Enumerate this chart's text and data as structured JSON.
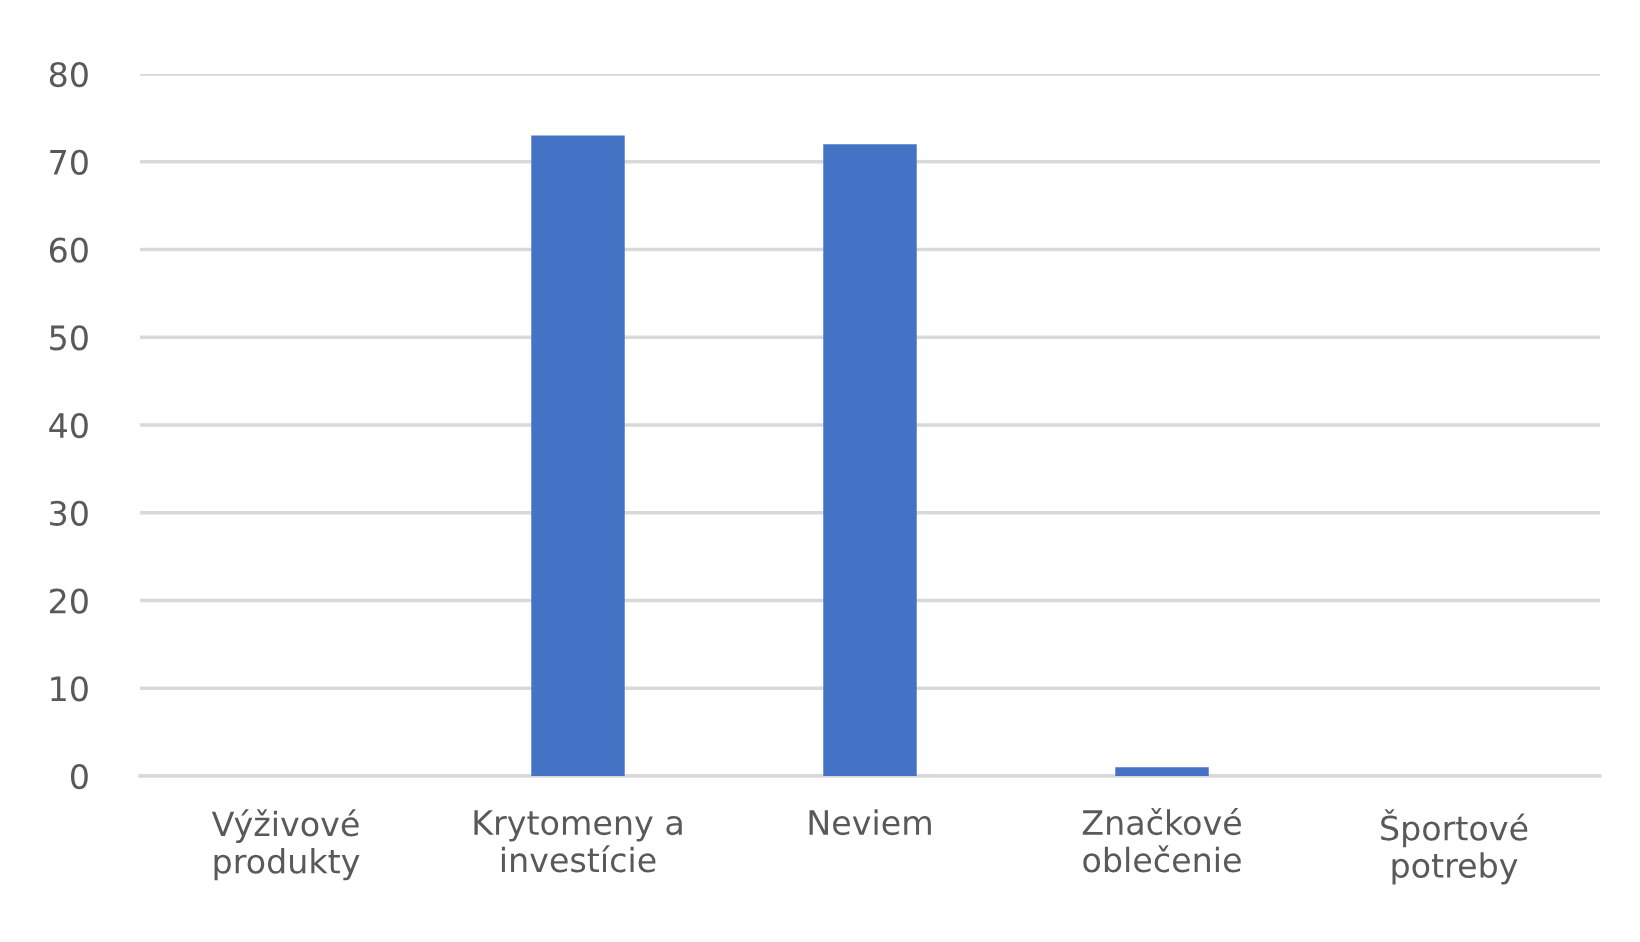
{
  "chart_data": {
    "type": "bar",
    "categories": [
      "Výživové\nprodukty",
      "Krytomeny a\ninvestície",
      "Neviem",
      "Značkové\noblečenie",
      "Športové\npotreby"
    ],
    "values": [
      0,
      73,
      72,
      1,
      0
    ],
    "color": "#4472c4",
    "ylim": [
      0,
      80
    ],
    "yticks": [
      0,
      10,
      20,
      30,
      40,
      50,
      60,
      70,
      80
    ],
    "grid": "y",
    "legend": false
  }
}
